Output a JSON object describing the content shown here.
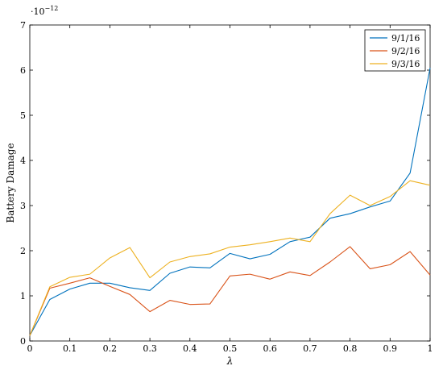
{
  "chart_data": {
    "type": "line",
    "title": "",
    "xlabel": "λ",
    "ylabel": "Battery Damage",
    "y_multiplier_label": "·10",
    "y_multiplier_exponent": "−12",
    "xlim": [
      0,
      1
    ],
    "ylim": [
      0,
      7
    ],
    "x_ticks": [
      0,
      0.1,
      0.2,
      0.3,
      0.4,
      0.5,
      0.6,
      0.7,
      0.8,
      0.9,
      1
    ],
    "x_tick_labels": [
      "0",
      "0.1",
      "0.2",
      "0.3",
      "0.4",
      "0.5",
      "0.6",
      "0.7",
      "0.8",
      "0.9",
      "1"
    ],
    "y_ticks": [
      0,
      1,
      2,
      3,
      4,
      5,
      6,
      7
    ],
    "y_tick_labels": [
      "0",
      "1",
      "2",
      "3",
      "4",
      "5",
      "6",
      "7"
    ],
    "grid": false,
    "legend_position": "top-right",
    "x": [
      0,
      0.05,
      0.1,
      0.15,
      0.2,
      0.25,
      0.3,
      0.35,
      0.4,
      0.45,
      0.5,
      0.55,
      0.6,
      0.65,
      0.7,
      0.75,
      0.8,
      0.85,
      0.9,
      0.95,
      1
    ],
    "series": [
      {
        "name": "9/1/16",
        "color": "#0072bd",
        "values": [
          0.12,
          0.92,
          1.15,
          1.28,
          1.28,
          1.18,
          1.12,
          1.5,
          1.64,
          1.62,
          1.94,
          1.82,
          1.92,
          2.2,
          2.3,
          2.72,
          2.82,
          2.97,
          3.1,
          3.72,
          6.05
        ]
      },
      {
        "name": "9/2/16",
        "color": "#d95319",
        "values": [
          0.12,
          1.17,
          1.28,
          1.4,
          1.21,
          1.03,
          0.65,
          0.9,
          0.81,
          0.82,
          1.44,
          1.48,
          1.37,
          1.53,
          1.45,
          1.75,
          2.09,
          1.6,
          1.69,
          1.98,
          1.46
        ]
      },
      {
        "name": "9/3/16",
        "color": "#edb120",
        "values": [
          0.12,
          1.2,
          1.41,
          1.48,
          1.84,
          2.07,
          1.4,
          1.75,
          1.87,
          1.93,
          2.08,
          2.13,
          2.2,
          2.28,
          2.2,
          2.82,
          3.23,
          3.0,
          3.2,
          3.55,
          3.45
        ]
      }
    ]
  }
}
